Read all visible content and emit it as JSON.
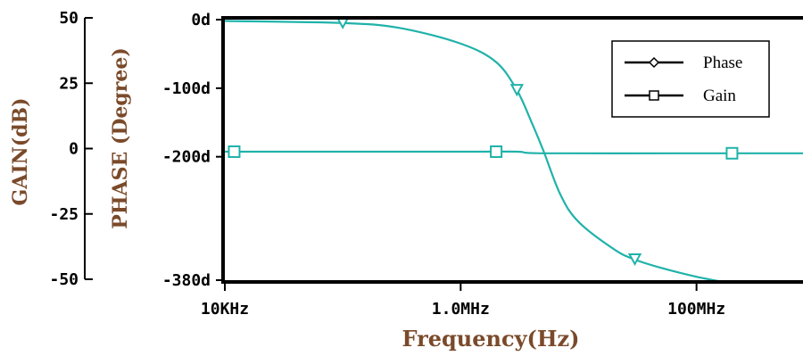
{
  "chart_data": {
    "type": "line",
    "xlabel": "Frequency(Hz)",
    "x_scale": "log",
    "xlim": [
      "10KHz",
      "800MHz"
    ],
    "x_ticks": [
      "10KHz",
      "1.0MHz",
      "100MHz"
    ],
    "y_axes": [
      {
        "label": "GAIN(dB)",
        "ticks": [
          "50",
          "25",
          "0",
          "-25",
          "-50"
        ],
        "tick_values": [
          50,
          25,
          0,
          -25,
          -50
        ],
        "ylim": [
          -50,
          50
        ]
      },
      {
        "label": "PHASE (Degree)",
        "ticks": [
          "0d",
          "-100d",
          "-200d",
          "-380d"
        ],
        "tick_values": [
          0,
          -100,
          -200,
          -380
        ],
        "ylim": [
          -380,
          0
        ]
      }
    ],
    "legend": {
      "placement": "top-right",
      "entries": [
        "Phase",
        "Gain"
      ]
    },
    "series": [
      {
        "name": "Phase",
        "axis": "phase",
        "marker": "triangle-down",
        "color": "#20b2aa",
        "x": [
          "10KHz",
          "100KHz",
          "300KHz",
          "1.0MHz",
          "2.0MHz",
          "3.0MHz",
          "4.0MHz",
          "5.0MHz",
          "7.0MHz",
          "10MHz",
          "20MHz",
          "30MHz",
          "50MHz",
          "100MHz",
          "200MHz"
        ],
        "y": [
          -2,
          -5,
          -12,
          -35,
          -62,
          -103,
          -150,
          -190,
          -255,
          -295,
          -335,
          -350,
          -362,
          -375,
          -385
        ],
        "markers": [
          {
            "x": "100KHz",
            "y": -5
          },
          {
            "x": "3.0MHz",
            "y": -103
          },
          {
            "x": "30MHz",
            "y": -350
          }
        ]
      },
      {
        "name": "Gain",
        "axis": "gain",
        "marker": "square",
        "color": "#20b2aa",
        "x": [
          "10KHz",
          "1.0MHz",
          "3.0MHz",
          "5.0MHz",
          "100MHz",
          "200MHz",
          "800MHz"
        ],
        "y": [
          -1.2,
          -1.2,
          -1.2,
          -1.8,
          -1.8,
          -1.8,
          -1.8
        ],
        "markers": [
          {
            "x": "12KHz",
            "y": -1.2
          },
          {
            "x": "2.0MHz",
            "y": -1.2
          },
          {
            "x": "200MHz",
            "y": -1.8
          }
        ]
      }
    ],
    "colors": {
      "trace": "#20b2aa",
      "axis_label": "#7a4a2a",
      "frame": "#000000"
    }
  }
}
